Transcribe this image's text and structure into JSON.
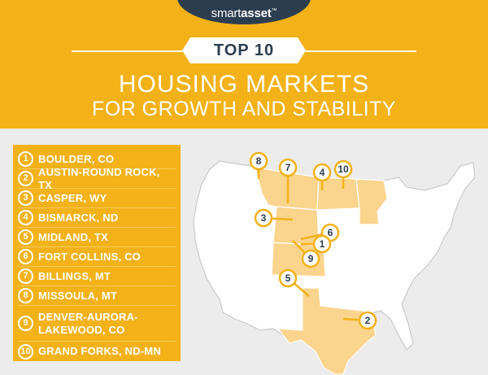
{
  "brand": {
    "name_light": "smart",
    "name_bold": "asset",
    "trademark": "™"
  },
  "banner": "TOP 10",
  "title": {
    "line1": "HOUSING MARKETS",
    "line2": "FOR GROWTH AND STABILITY"
  },
  "colors": {
    "accent": "#f4b219",
    "navy": "#2c3d4f",
    "background": "#ececec",
    "map_fill": "#ffffff",
    "map_highlight": "#fbd48d"
  },
  "ranking": [
    {
      "rank": "1",
      "label": "BOULDER, CO"
    },
    {
      "rank": "2",
      "label": "AUSTIN-ROUND ROCK, TX"
    },
    {
      "rank": "3",
      "label": "CASPER, WY"
    },
    {
      "rank": "4",
      "label": "BISMARCK, ND"
    },
    {
      "rank": "5",
      "label": "MIDLAND, TX"
    },
    {
      "rank": "6",
      "label": "FORT COLLINS, CO"
    },
    {
      "rank": "7",
      "label": "BILLINGS, MT"
    },
    {
      "rank": "8",
      "label": "MISSOULA, MT"
    },
    {
      "rank": "9",
      "label": "DENVER-AURORA-LAKEWOOD, CO",
      "line1": "DENVER-AURORA-",
      "line2": "LAKEWOOD, CO"
    },
    {
      "rank": "10",
      "label": "GRAND FORKS, ND-MN"
    }
  ]
}
